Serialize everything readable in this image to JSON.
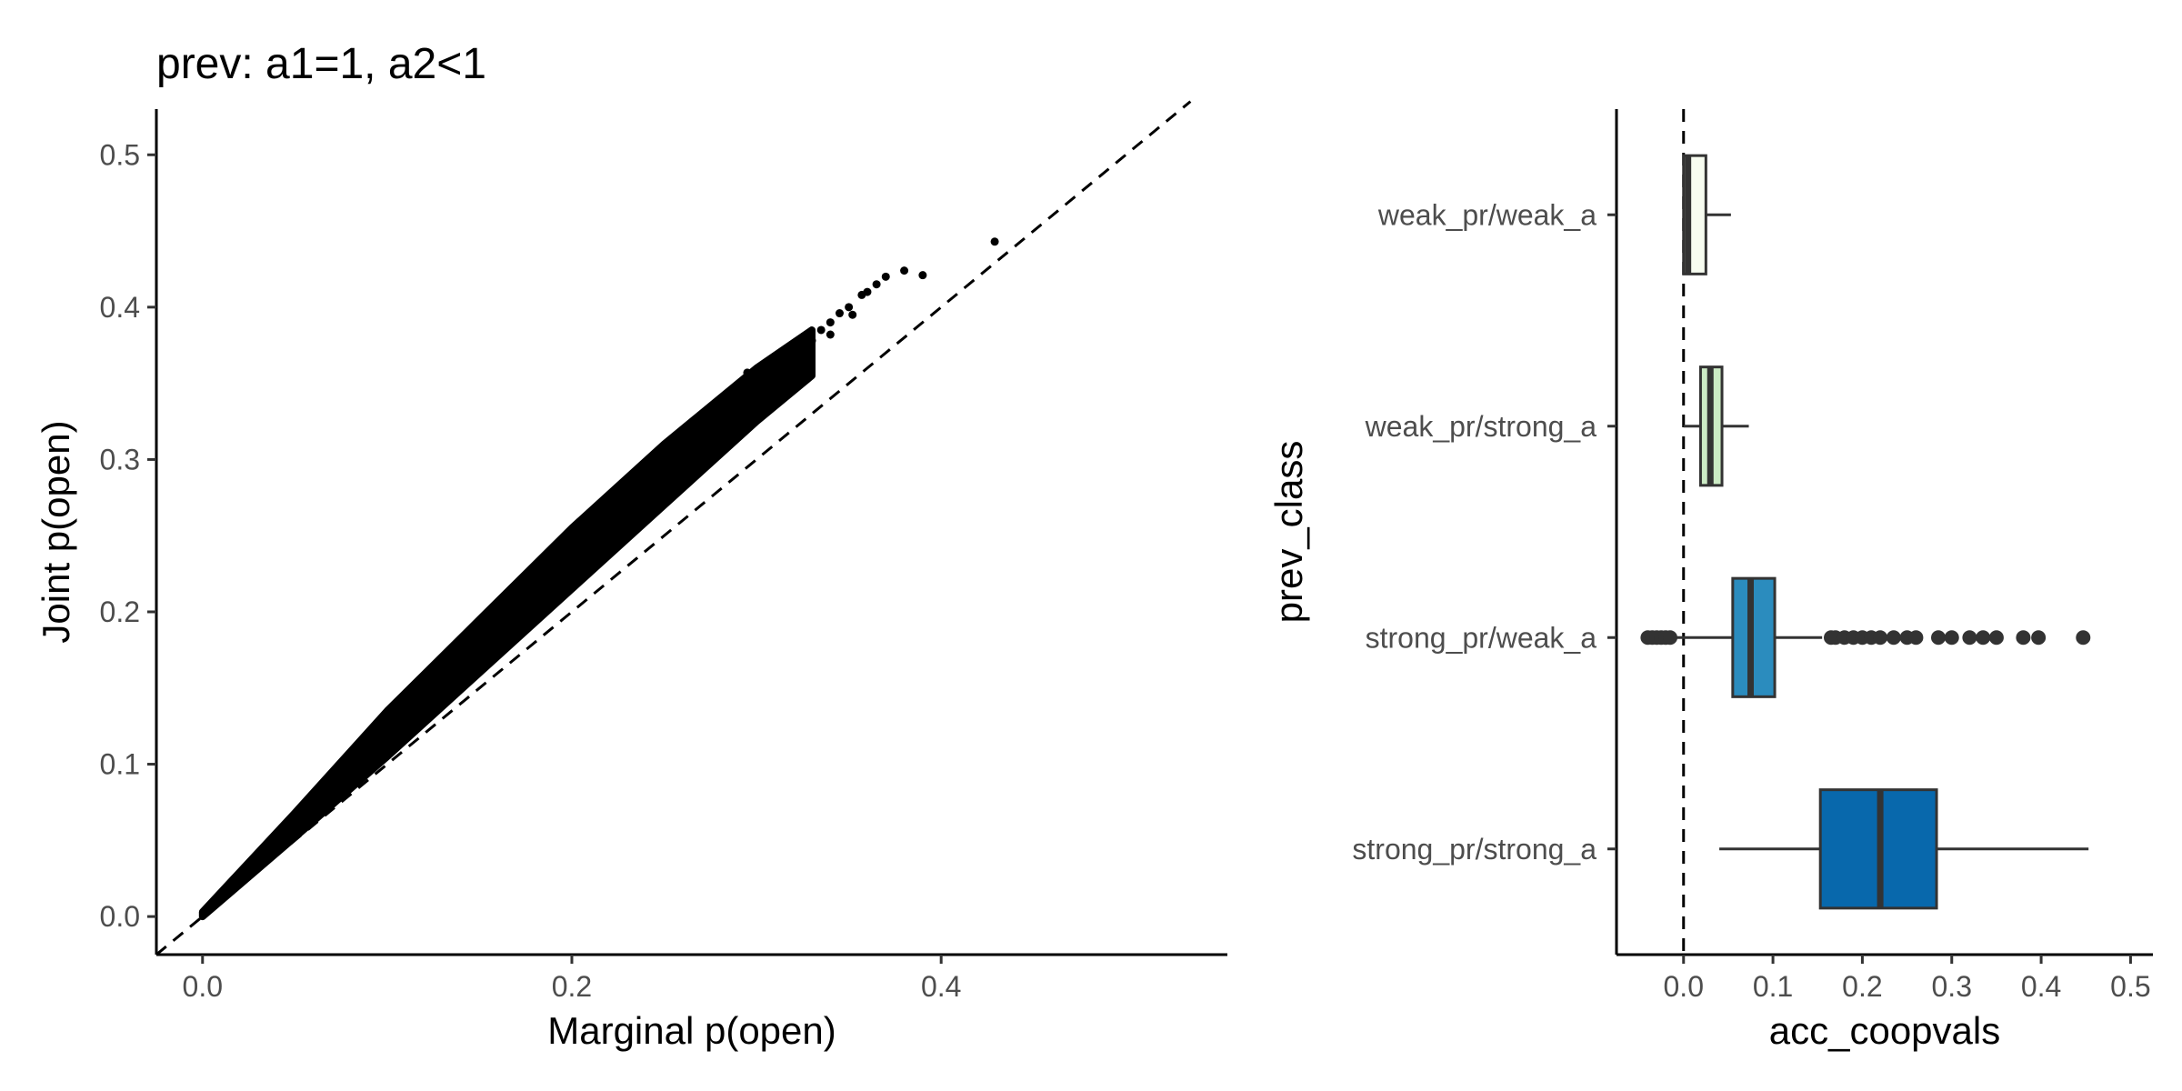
{
  "chart_data": [
    {
      "type": "scatter",
      "title": "prev: a1=1, a2<1",
      "xlabel": "Marginal p(open)",
      "ylabel": "Joint p(open)",
      "xlim": [
        -0.025,
        0.555
      ],
      "ylim": [
        -0.025,
        0.53
      ],
      "xticks": [
        "0.0",
        "0.2",
        "0.4"
      ],
      "yticks": [
        "0.0",
        "0.1",
        "0.2",
        "0.3",
        "0.4",
        "0.5"
      ],
      "reference_line": {
        "style": "dashed",
        "slope": 1,
        "intercept": 0
      },
      "grid": false,
      "point_color": "#000000",
      "band": [
        {
          "x": 0.0,
          "lo": 0.0,
          "hi": 0.003
        },
        {
          "x": 0.05,
          "lo": 0.052,
          "hi": 0.068
        },
        {
          "x": 0.1,
          "lo": 0.105,
          "hi": 0.135
        },
        {
          "x": 0.15,
          "lo": 0.16,
          "hi": 0.195
        },
        {
          "x": 0.2,
          "lo": 0.215,
          "hi": 0.255
        },
        {
          "x": 0.25,
          "lo": 0.27,
          "hi": 0.31
        },
        {
          "x": 0.3,
          "lo": 0.325,
          "hi": 0.36
        },
        {
          "x": 0.33,
          "lo": 0.355,
          "hi": 0.385
        }
      ],
      "points": [
        [
          0.33,
          0.378
        ],
        [
          0.335,
          0.385
        ],
        [
          0.34,
          0.39
        ],
        [
          0.345,
          0.396
        ],
        [
          0.35,
          0.4
        ],
        [
          0.357,
          0.408
        ],
        [
          0.36,
          0.41
        ],
        [
          0.365,
          0.415
        ],
        [
          0.37,
          0.42
        ],
        [
          0.38,
          0.424
        ],
        [
          0.39,
          0.421
        ],
        [
          0.429,
          0.443
        ],
        [
          0.32,
          0.365
        ],
        [
          0.31,
          0.36
        ],
        [
          0.3,
          0.352
        ],
        [
          0.295,
          0.357
        ],
        [
          0.34,
          0.382
        ],
        [
          0.352,
          0.395
        ],
        [
          0.325,
          0.37
        ],
        [
          0.315,
          0.355
        ]
      ]
    },
    {
      "type": "box",
      "xlabel": "acc_coopvals",
      "ylabel": "prev_class",
      "xlim": [
        -0.075,
        0.525
      ],
      "xticks": [
        "0.0",
        "0.1",
        "0.2",
        "0.3",
        "0.4",
        "0.5"
      ],
      "reference_line": {
        "style": "dashed",
        "x": 0
      },
      "grid": false,
      "categories": [
        "weak_pr/weak_a",
        "weak_pr/strong_a",
        "strong_pr/weak_a",
        "strong_pr/strong_a"
      ],
      "boxes": [
        {
          "label": "weak_pr/weak_a",
          "min": 0.0,
          "q1": 0.0,
          "median": 0.005,
          "q3": 0.025,
          "max": 0.053,
          "outliers": [],
          "color": "#f7fcf0"
        },
        {
          "label": "weak_pr/strong_a",
          "min": 0.0,
          "q1": 0.019,
          "median": 0.03,
          "q3": 0.043,
          "max": 0.073,
          "outliers": [],
          "color": "#ccebc5"
        },
        {
          "label": "strong_pr/weak_a",
          "min": -0.01,
          "q1": 0.055,
          "median": 0.075,
          "q3": 0.102,
          "max": 0.155,
          "outliers": [
            -0.04,
            -0.035,
            -0.03,
            -0.025,
            -0.02,
            -0.015,
            0.165,
            0.17,
            0.18,
            0.19,
            0.2,
            0.21,
            0.22,
            0.235,
            0.25,
            0.26,
            0.285,
            0.3,
            0.32,
            0.335,
            0.35,
            0.38,
            0.397,
            0.447
          ],
          "color": "#2b8cbe"
        },
        {
          "label": "strong_pr/strong_a",
          "min": 0.04,
          "q1": 0.153,
          "median": 0.22,
          "q3": 0.283,
          "max": 0.453,
          "outliers": [],
          "color": "#0868ac"
        }
      ]
    }
  ]
}
